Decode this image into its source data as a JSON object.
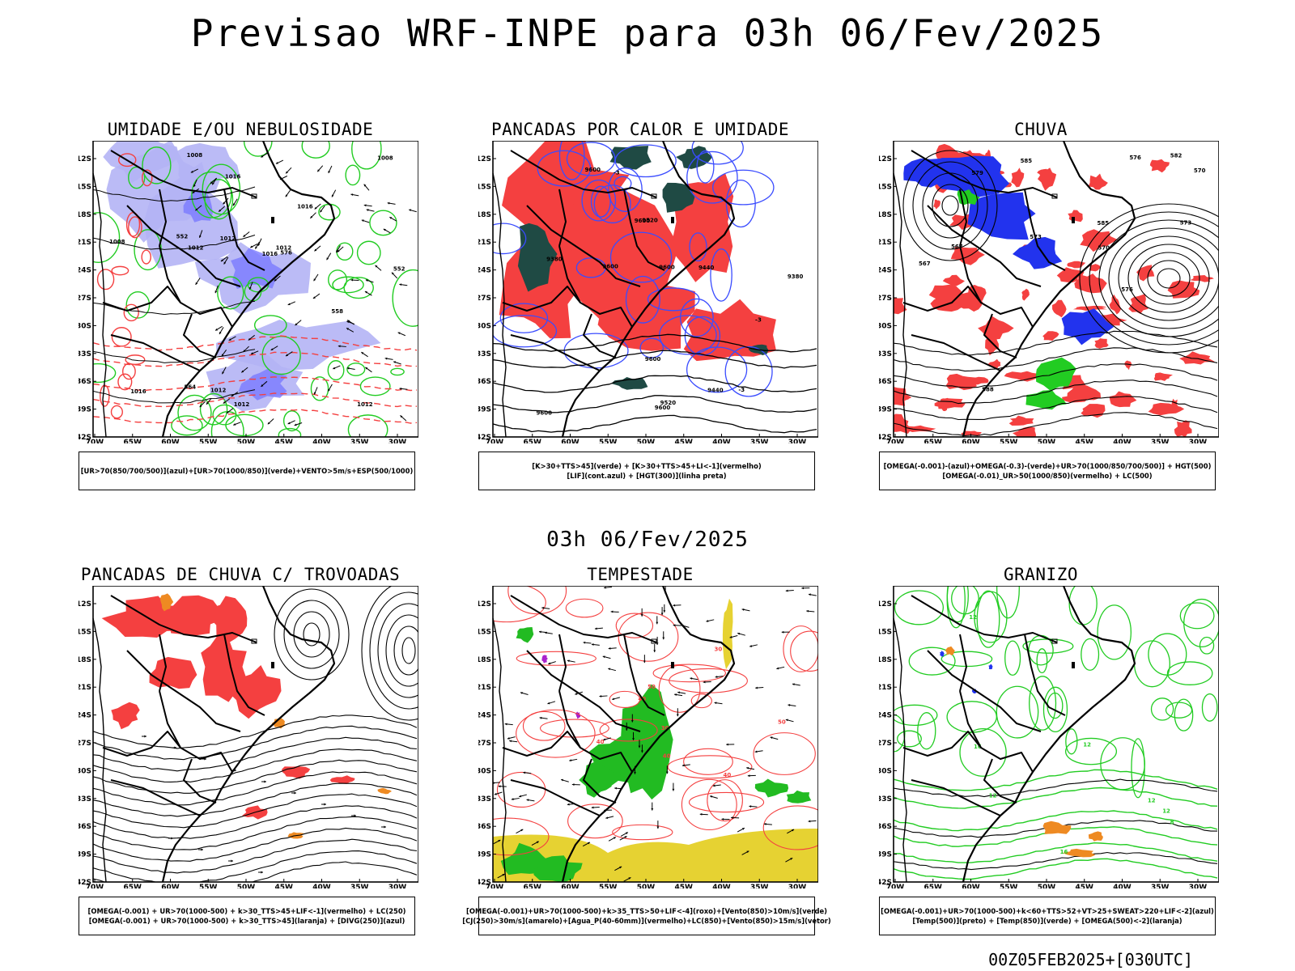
{
  "title": "Previsao WRF-INPE  para 03h 06/Fev/2025",
  "mid_title": "03h 06/Fev/2025",
  "footer": "00Z05FEB2025+[030UTC]",
  "axes": {
    "lat_labels": [
      "12S",
      "15S",
      "18S",
      "21S",
      "24S",
      "27S",
      "30S",
      "33S",
      "36S",
      "39S",
      "42S"
    ],
    "lon_labels": [
      "70W",
      "65W",
      "60W",
      "55W",
      "50W",
      "45W",
      "40W",
      "35W",
      "30W"
    ]
  },
  "colors": {
    "blue": "#7b7bff",
    "lightblue": "#b4b4f5",
    "green": "#22cc22",
    "red": "#f44040",
    "darkgreen": "#1f4a44",
    "yellow": "#e6d232",
    "orange": "#ee8a22",
    "purple": "#aa22cc"
  },
  "panels": [
    {
      "title": "UMIDADE E/OU NEBULOSIDADE",
      "legend": [
        "[UR>70(850/700/500)](azul)+[UR>70(1000/850)](verde)+VENTO>5m/s+ESP(500/1000)"
      ],
      "contour_labels": [
        "1012",
        "1012",
        "1008",
        "1012",
        "1008",
        "1012",
        "1016",
        "1012",
        "1016",
        "1016",
        "1008",
        "1012",
        "1016",
        "576",
        "564",
        "558",
        "552",
        "552"
      ]
    },
    {
      "title": "PANCADAS POR CALOR E UMIDADE",
      "legend": [
        "[K>30+TTS>45](verde) + [K>30+TTS>45+LI<-1](vermelho)",
        "[LIF](cont.azul) + [HGT(300)](linha preta)"
      ],
      "contour_labels": [
        "9600",
        "9600",
        "9600",
        "9600",
        "9600",
        "9600",
        "9600",
        "9520",
        "9520",
        "9440",
        "9440",
        "9380",
        "9380",
        "-3",
        "-3",
        "-3"
      ]
    },
    {
      "title": "CHUVA",
      "legend": [
        "[OMEGA(-0.001)-(azul)+OMEGA(-0.3)-(verde)+UR>70(1000/850/700/500)] + HGT(500)",
        "[OMEGA(-0.01)_UR>50(1000/850)(vermelho) + LC(500)"
      ],
      "contour_labels": [
        "585",
        "585",
        "582",
        "579",
        "576",
        "573",
        "570",
        "567",
        "573",
        "576",
        "570",
        "567",
        "588"
      ]
    },
    {
      "title": "PANCADAS DE CHUVA C/ TROVOADAS",
      "legend": [
        "[OMEGA(-0.001) + UR>70(1000-500) + k>30_TTS>45+LIF<-1](vermelho) + LC(250)",
        "[OMEGA(-0.001) + UR>70(1000-500) + k>30_TTS>45](laranja) + [DIVG(250)](azul)"
      ],
      "contour_labels": []
    },
    {
      "title": "TEMPESTADE",
      "legend": [
        "[OMEGA(-0.001)+UR>70(1000-500)+k>35_TTS>50+LIF<-4](roxo)+[Vento(850)>10m/s](verde)",
        "[CJ(250)>30m/s](amarelo)+[Agua_P(40-60mm)](vermelho)+LC(850)+[Vento(850)>15m/s](vetor)"
      ],
      "contour_labels": [
        "40",
        "40",
        "50",
        "50",
        "40",
        "30",
        "40",
        "30"
      ]
    },
    {
      "title": "GRANIZO",
      "legend": [
        "[OMEGA(-0.001)+UR>70(1000-500)+k<60+TTS>52+VT>25+SWEAT>220+LIF<-2](azul)",
        "[Temp(500)](preto) + [Temp(850)](verde) + [OMEGA(500)<-2](laranja)"
      ],
      "contour_labels": [
        "16",
        "12",
        "12",
        "12",
        "12",
        "16",
        "8",
        "12"
      ]
    }
  ]
}
